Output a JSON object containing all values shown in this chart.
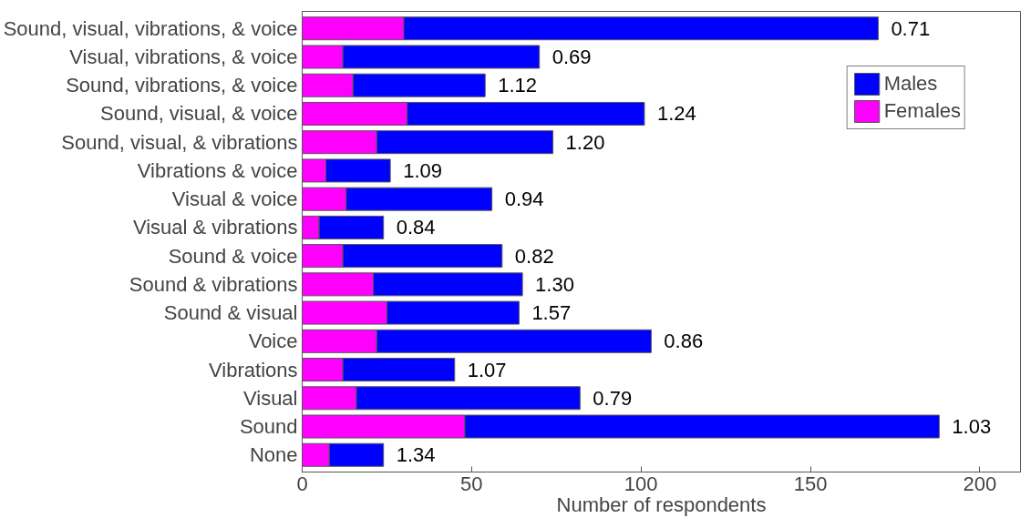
{
  "chart_data": {
    "type": "bar",
    "orientation": "horizontal",
    "stacked": true,
    "xlabel": "Number of respondents",
    "categories": [
      "Sound, visual, vibrations, & voice",
      "Visual, vibrations, & voice",
      "Sound, vibrations, & voice",
      "Sound, visual, & voice",
      "Sound, visual, & vibrations",
      "Vibrations & voice",
      "Visual & voice",
      "Visual & vibrations",
      "Sound & voice",
      "Sound & vibrations",
      "Sound & visual",
      "Voice",
      "Vibrations",
      "Visual",
      "Sound",
      "None"
    ],
    "series": [
      {
        "name": "Females",
        "color": "#ff00ff",
        "values": [
          30,
          12,
          15,
          31,
          22,
          7,
          13,
          5,
          12,
          21,
          25,
          22,
          12,
          16,
          48,
          8
        ]
      },
      {
        "name": "Males",
        "color": "#0000ff",
        "values": [
          140,
          58,
          39,
          70,
          52,
          19,
          43,
          19,
          47,
          44,
          39,
          81,
          33,
          66,
          140,
          16
        ]
      }
    ],
    "xlim": [
      0,
      212
    ],
    "xticks": [
      0,
      50,
      100,
      150,
      200
    ],
    "grid": false,
    "legend": "top right",
    "annotations": [
      {
        "text": "0.71",
        "x": 170,
        "y": "Sound, visual, vibrations, & voice"
      },
      {
        "text": "0.69",
        "x": 70,
        "y": "Visual, vibrations, & voice"
      },
      {
        "text": "1.12",
        "x": 54,
        "y": "Sound, vibrations, & voice"
      },
      {
        "text": "1.24",
        "x": 101,
        "y": "Sound, visual, & voice"
      },
      {
        "text": "1.20",
        "x": 74,
        "y": "Sound, visual, & vibrations"
      },
      {
        "text": "1.09",
        "x": 26,
        "y": "Vibrations & voice"
      },
      {
        "text": "0.94",
        "x": 56,
        "y": "Visual & voice"
      },
      {
        "text": "0.84",
        "x": 24,
        "y": "Visual & vibrations"
      },
      {
        "text": "0.82",
        "x": 59,
        "y": "Sound & voice"
      },
      {
        "text": "1.30",
        "x": 65,
        "y": "Sound & vibrations"
      },
      {
        "text": "1.57",
        "x": 64,
        "y": "Sound & visual"
      },
      {
        "text": "0.86",
        "x": 103,
        "y": "Voice"
      },
      {
        "text": "1.07",
        "x": 45,
        "y": "Vibrations"
      },
      {
        "text": "0.79",
        "x": 82,
        "y": "Visual"
      },
      {
        "text": "1.03",
        "x": 188,
        "y": "Sound"
      },
      {
        "text": "1.34",
        "x": 24,
        "y": "None"
      }
    ]
  }
}
